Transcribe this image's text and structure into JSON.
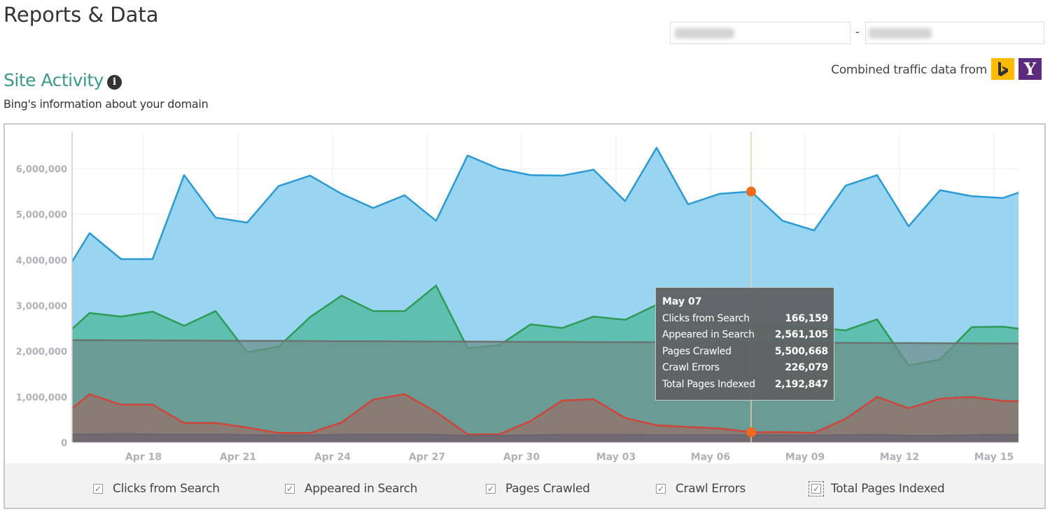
{
  "header": {
    "title": "Reports & Data",
    "date_separator": "-"
  },
  "traffic": {
    "text": "Combined traffic data from",
    "sources": [
      {
        "name": "bing-logo",
        "color": "#ffb900"
      },
      {
        "name": "yahoo-logo",
        "glyph": "Y",
        "color": "#5c2a7e"
      }
    ]
  },
  "section": {
    "title": "Site Activity",
    "info_glyph": "i",
    "subtitle": "Bing's information about your domain"
  },
  "tooltip": {
    "date": "May 07",
    "rows": [
      {
        "label": "Clicks from Search",
        "value": "166,159"
      },
      {
        "label": "Appeared in Search",
        "value": "2,561,105"
      },
      {
        "label": "Pages Crawled",
        "value": "5,500,668"
      },
      {
        "label": "Crawl Errors",
        "value": "226,079"
      },
      {
        "label": "Total Pages Indexed",
        "value": "2,192,847"
      }
    ]
  },
  "legend": [
    {
      "label": "Clicks from Search",
      "checked": true
    },
    {
      "label": "Appeared in Search",
      "checked": true
    },
    {
      "label": "Pages Crawled",
      "checked": true
    },
    {
      "label": "Crawl Errors",
      "checked": true
    },
    {
      "label": "Total Pages Indexed",
      "checked": true
    }
  ],
  "chart_data": {
    "type": "area",
    "ylim": [
      0,
      6800000
    ],
    "yticks": [
      "0",
      "1,000,000",
      "2,000,000",
      "3,000,000",
      "4,000,000",
      "5,000,000",
      "6,000,000"
    ],
    "ytick_values": [
      0,
      1000000,
      2000000,
      3000000,
      4000000,
      5000000,
      6000000
    ],
    "xtick_labels": [
      "Apr 18",
      "Apr 21",
      "Apr 24",
      "Apr 27",
      "Apr 30",
      "May 03",
      "May 06",
      "May 09",
      "May 12",
      "May 15"
    ],
    "grid": true,
    "highlighted": "May 07",
    "x": [
      "Apr 15",
      "Apr 16",
      "Apr 17",
      "Apr 18",
      "Apr 19",
      "Apr 20",
      "Apr 21",
      "Apr 22",
      "Apr 23",
      "Apr 24",
      "Apr 25",
      "Apr 26",
      "Apr 27",
      "Apr 28",
      "Apr 29",
      "Apr 30",
      "May 01",
      "May 02",
      "May 03",
      "May 04",
      "May 05",
      "May 06",
      "May 07",
      "May 08",
      "May 09",
      "May 10",
      "May 11",
      "May 12",
      "May 13",
      "May 14",
      "May 15",
      "May 16"
    ],
    "series": [
      {
        "name": "Pages Crawled",
        "line": "#2a9ad4",
        "fill": "#93d2ef",
        "values": [
          3470000,
          4590000,
          4020000,
          4020000,
          5860000,
          4930000,
          4820000,
          5620000,
          5850000,
          5450000,
          5140000,
          5420000,
          4860000,
          6290000,
          6000000,
          5860000,
          5850000,
          5980000,
          5290000,
          6460000,
          5220000,
          5450000,
          5500668,
          4860000,
          4650000,
          5630000,
          5860000,
          4740000,
          5530000,
          5400000,
          5360000,
          5600000
        ]
      },
      {
        "name": "Appeared in Search",
        "line": "#2f9a55",
        "fill": "#55bba4",
        "values": [
          2210000,
          2840000,
          2760000,
          2870000,
          2560000,
          2880000,
          1980000,
          2100000,
          2750000,
          3220000,
          2880000,
          2880000,
          3440000,
          2070000,
          2130000,
          2590000,
          2510000,
          2760000,
          2690000,
          3020000,
          2850000,
          2700000,
          2561105,
          2550000,
          2520000,
          2460000,
          2700000,
          1690000,
          1820000,
          2530000,
          2540000,
          2450000
        ]
      },
      {
        "name": "Total Pages Indexed",
        "line": "#6b7472",
        "fill": "#6e8f8c",
        "values": [
          2245000,
          2243000,
          2240000,
          2238000,
          2235000,
          2233000,
          2230000,
          2228000,
          2225000,
          2222000,
          2220000,
          2217000,
          2215000,
          2212000,
          2210000,
          2207000,
          2205000,
          2202000,
          2200000,
          2197000,
          2195000,
          2194000,
          2192847,
          2190000,
          2187000,
          2185000,
          2182000,
          2180000,
          2177000,
          2175000,
          2172000,
          2170000
        ]
      },
      {
        "name": "Crawl Errors",
        "line": "#d0453a",
        "fill": "#8e7770",
        "values": [
          500000,
          1060000,
          830000,
          830000,
          430000,
          430000,
          330000,
          210000,
          210000,
          440000,
          940000,
          1060000,
          670000,
          180000,
          180000,
          470000,
          920000,
          950000,
          540000,
          380000,
          340000,
          310000,
          226079,
          230000,
          210000,
          520000,
          1000000,
          750000,
          960000,
          1000000,
          910000,
          910000
        ]
      },
      {
        "name": "Clicks from Search",
        "line": "#6a6570",
        "fill": "#6c6670",
        "values": [
          170000,
          180000,
          185000,
          180000,
          175000,
          175000,
          165000,
          160000,
          160000,
          170000,
          175000,
          175000,
          170000,
          150000,
          150000,
          160000,
          170000,
          170000,
          170000,
          165000,
          165000,
          165000,
          166159,
          160000,
          160000,
          165000,
          170000,
          150000,
          150000,
          165000,
          170000,
          170000
        ]
      }
    ]
  }
}
